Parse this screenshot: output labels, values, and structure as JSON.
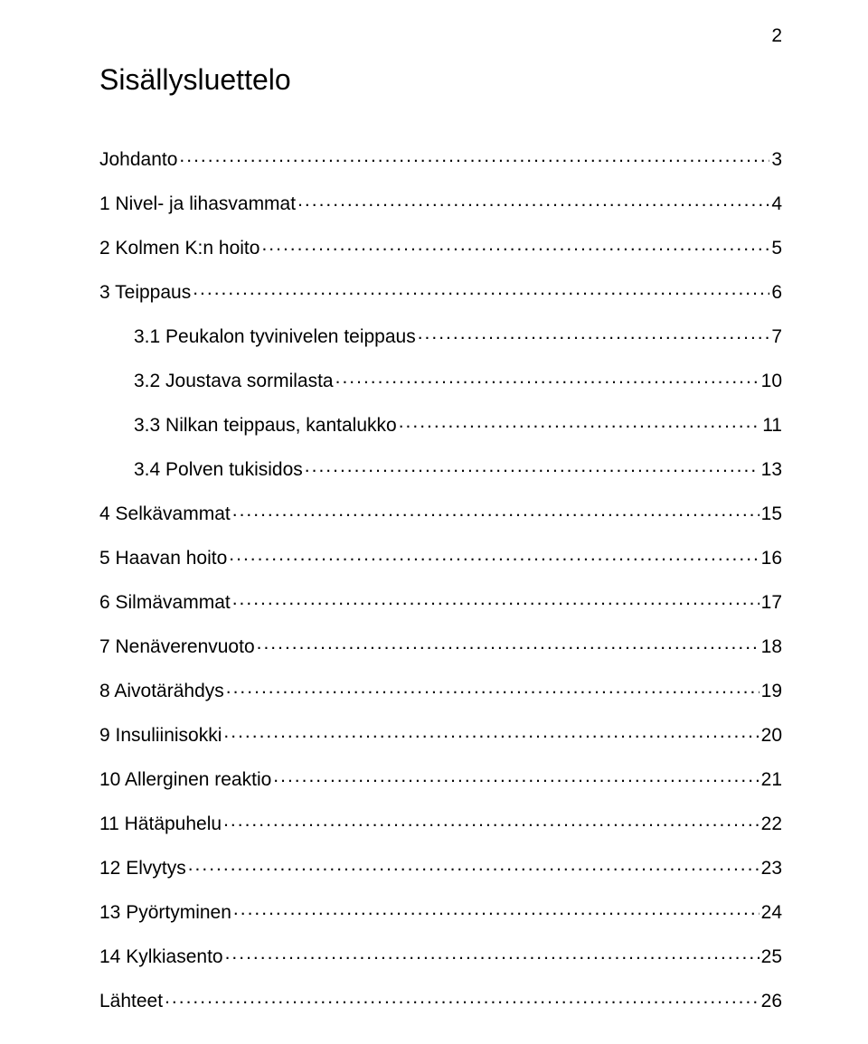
{
  "page_number": "2",
  "title": "Sisällysluettelo",
  "toc": [
    {
      "label": "Johdanto",
      "page": "3",
      "indent": false
    },
    {
      "label": "1 Nivel- ja lihasvammat",
      "page": "4",
      "indent": false
    },
    {
      "label": "2 Kolmen K:n hoito",
      "page": "5",
      "indent": false
    },
    {
      "label": "3 Teippaus",
      "page": "6",
      "indent": false
    },
    {
      "label": "3.1 Peukalon tyvinivelen teippaus",
      "page": "7",
      "indent": true
    },
    {
      "label": "3.2 Joustava sormilasta",
      "page": "10",
      "indent": true
    },
    {
      "label": "3.3 Nilkan teippaus, kantalukko",
      "page": "11",
      "indent": true
    },
    {
      "label": "3.4 Polven tukisidos",
      "page": "13",
      "indent": true
    },
    {
      "label": "4 Selkävammat",
      "page": "15",
      "indent": false
    },
    {
      "label": "5 Haavan hoito",
      "page": "16",
      "indent": false
    },
    {
      "label": "6 Silmävammat",
      "page": "17",
      "indent": false
    },
    {
      "label": "7 Nenäverenvuoto",
      "page": "18",
      "indent": false
    },
    {
      "label": "8 Aivotärähdys",
      "page": "19",
      "indent": false
    },
    {
      "label": "9 Insuliinisokki",
      "page": "20",
      "indent": false
    },
    {
      "label": "10 Allerginen reaktio",
      "page": "21",
      "indent": false
    },
    {
      "label": "11 Hätäpuhelu",
      "page": "22",
      "indent": false
    },
    {
      "label": "12 Elvytys",
      "page": "23",
      "indent": false
    },
    {
      "label": "13 Pyörtyminen",
      "page": "24",
      "indent": false
    },
    {
      "label": "14 Kylkiasento",
      "page": "25",
      "indent": false
    },
    {
      "label": "Lähteet",
      "page": "26",
      "indent": false
    }
  ]
}
